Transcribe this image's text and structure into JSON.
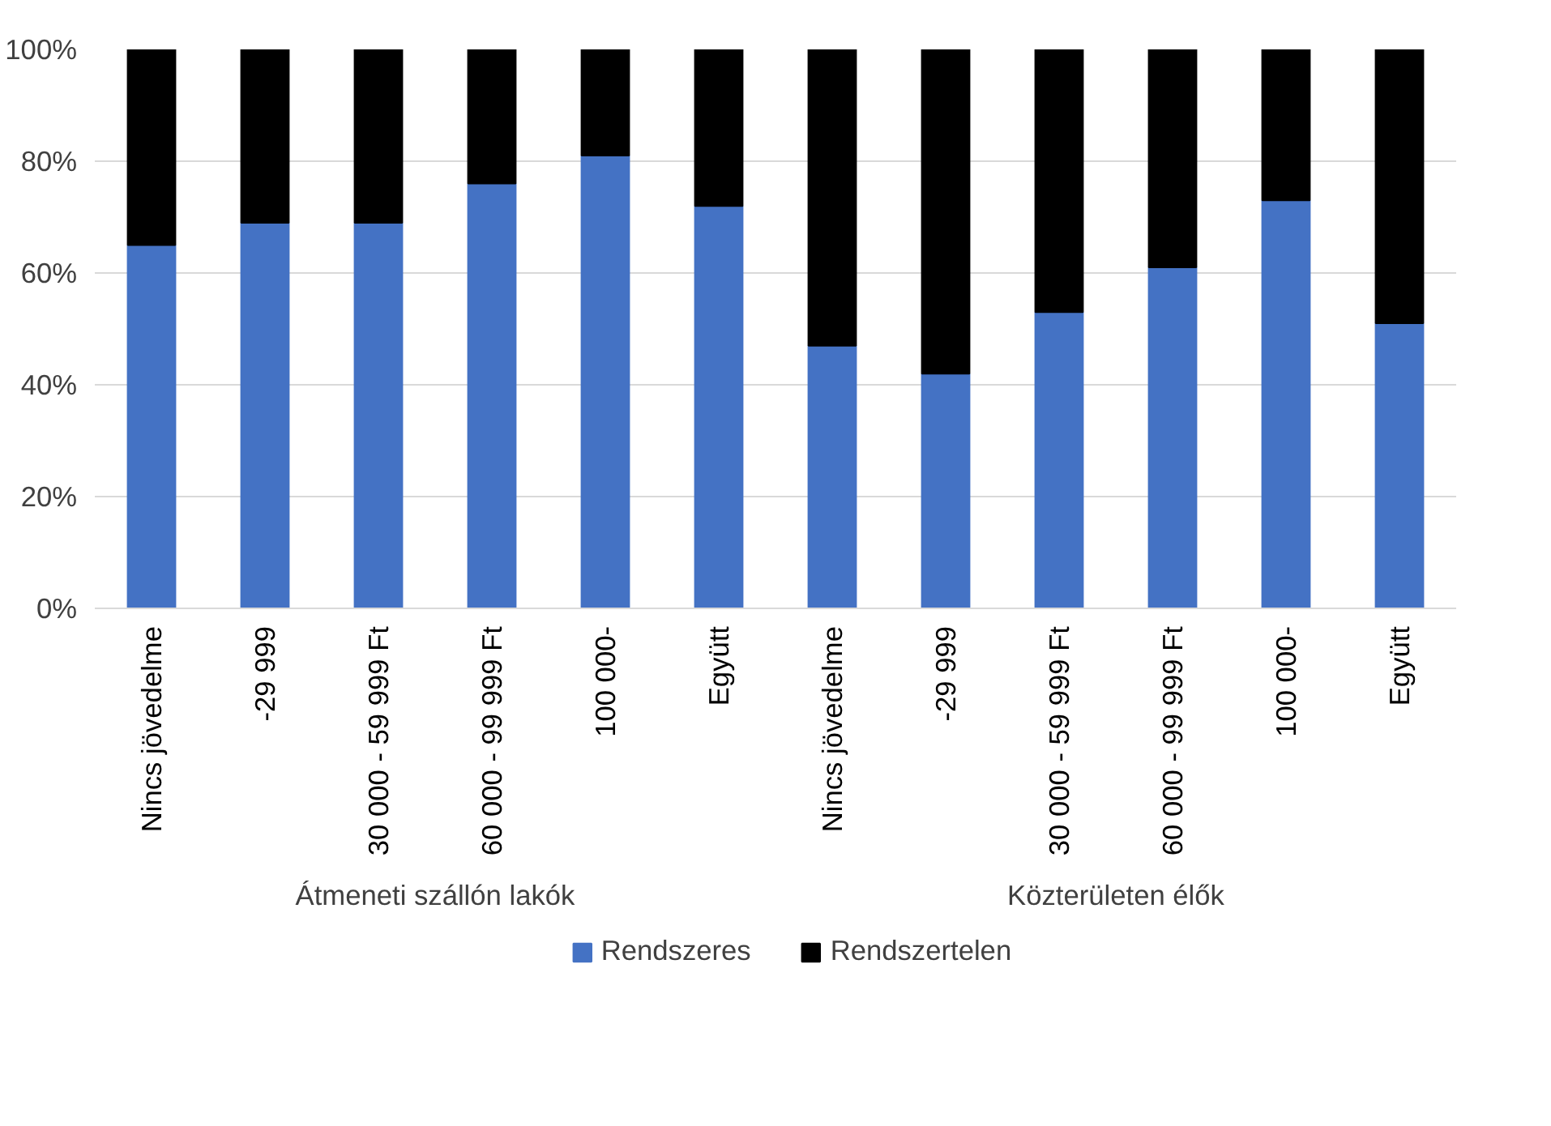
{
  "chart_data": {
    "type": "bar",
    "stacked": true,
    "categories": [
      "Nincs jövedelme",
      "-29 999",
      "30 000 - 59 999 Ft",
      "60 000 - 99 999 Ft",
      "100 000-",
      "Együtt",
      "Nincs jövedelme",
      "-29 999",
      "30 000 - 59 999 Ft",
      "60 000 - 99 999 Ft",
      "100 000-",
      "Együtt"
    ],
    "series": [
      {
        "name": "Rendszeres",
        "color": "#4472c4",
        "values": [
          65,
          69,
          69,
          76,
          81,
          72,
          47,
          42,
          53,
          61,
          73,
          51
        ]
      },
      {
        "name": "Rendszertelen",
        "color": "#000000",
        "values": [
          35,
          31,
          31,
          24,
          19,
          28,
          53,
          58,
          47,
          39,
          27,
          49
        ]
      }
    ],
    "annotations": [
      "Átmeneti szállón lakók",
      "Közterületen élők"
    ],
    "ylim": [
      0,
      100
    ],
    "yticks": [
      {
        "value": 0,
        "label": "0%"
      },
      {
        "value": 20,
        "label": "20%"
      },
      {
        "value": 40,
        "label": "40%"
      },
      {
        "value": 60,
        "label": "60%"
      },
      {
        "value": 80,
        "label": "80%"
      },
      {
        "value": 100,
        "label": "100%"
      }
    ],
    "grid": "y",
    "legend": "bottom"
  }
}
